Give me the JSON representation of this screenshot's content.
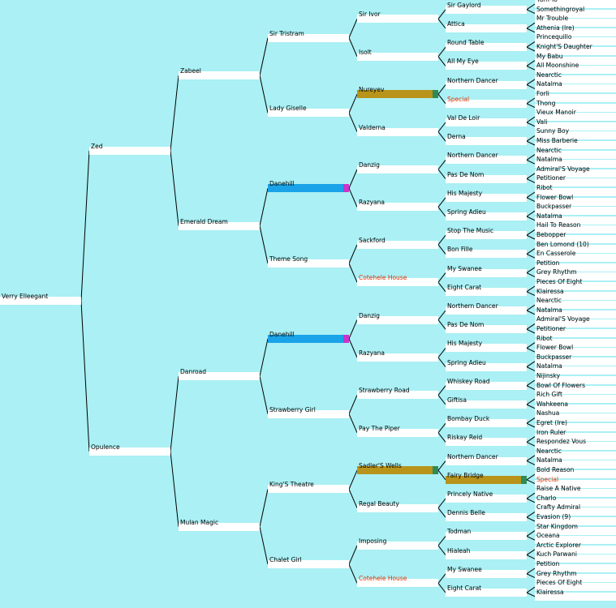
{
  "subject": "Verry Elleegant",
  "colors": {
    "background": "#aaf0f4",
    "box": "#ffffff",
    "line": "#000000",
    "highlight_text": "#e03000",
    "inbreed_blue": "#1aa3e8",
    "inbreed_blue_end": "#cc33cc",
    "inbreed_gold": "#b8941a",
    "inbreed_gold_end": "#2e8b57"
  },
  "tree": {
    "name": "Verry Elleegant",
    "children": [
      {
        "name": "Zed",
        "children": [
          {
            "name": "Zabeel",
            "children": [
              {
                "name": "Sir Tristram",
                "children": [
                  {
                    "name": "Sir Ivor",
                    "children": [
                      {
                        "name": "Sir Gaylord",
                        "children": [
                          {
                            "name": "Turn-To"
                          },
                          {
                            "name": "Somethingroyal"
                          }
                        ]
                      },
                      {
                        "name": "Attica",
                        "children": [
                          {
                            "name": "Mr Trouble"
                          },
                          {
                            "name": "Athenia (Ire)"
                          }
                        ]
                      }
                    ]
                  },
                  {
                    "name": "Isolt",
                    "children": [
                      {
                        "name": "Round Table",
                        "children": [
                          {
                            "name": "Princequillo"
                          },
                          {
                            "name": "Knight'S Daughter"
                          }
                        ]
                      },
                      {
                        "name": "All My Eye",
                        "children": [
                          {
                            "name": "My Babu"
                          },
                          {
                            "name": "All Moonshine"
                          }
                        ]
                      }
                    ]
                  }
                ]
              },
              {
                "name": "Lady Giselle",
                "children": [
                  {
                    "name": "Nureyev",
                    "mark": "gold",
                    "children": [
                      {
                        "name": "Northern Dancer",
                        "children": [
                          {
                            "name": "Nearctic"
                          },
                          {
                            "name": "Natalma"
                          }
                        ]
                      },
                      {
                        "name": "Special",
                        "hl": true,
                        "children": [
                          {
                            "name": "Forli"
                          },
                          {
                            "name": "Thong"
                          }
                        ]
                      }
                    ]
                  },
                  {
                    "name": "Valderna",
                    "children": [
                      {
                        "name": "Val De Loir",
                        "children": [
                          {
                            "name": "Vieux Manoir"
                          },
                          {
                            "name": "Vali"
                          }
                        ]
                      },
                      {
                        "name": "Derna",
                        "children": [
                          {
                            "name": "Sunny Boy"
                          },
                          {
                            "name": "Miss Barberie"
                          }
                        ]
                      }
                    ]
                  }
                ]
              }
            ]
          },
          {
            "name": "Emerald Dream",
            "children": [
              {
                "name": "Danehill",
                "mark": "blue",
                "children": [
                  {
                    "name": "Danzig",
                    "children": [
                      {
                        "name": "Northern Dancer",
                        "children": [
                          {
                            "name": "Nearctic"
                          },
                          {
                            "name": "Natalma"
                          }
                        ]
                      },
                      {
                        "name": "Pas De Nom",
                        "children": [
                          {
                            "name": "Admiral'S Voyage"
                          },
                          {
                            "name": "Petitioner"
                          }
                        ]
                      }
                    ]
                  },
                  {
                    "name": "Razyana",
                    "children": [
                      {
                        "name": "His Majesty",
                        "children": [
                          {
                            "name": "Ribot"
                          },
                          {
                            "name": "Flower Bowl"
                          }
                        ]
                      },
                      {
                        "name": "Spring Adieu",
                        "children": [
                          {
                            "name": "Buckpasser"
                          },
                          {
                            "name": "Natalma"
                          }
                        ]
                      }
                    ]
                  }
                ]
              },
              {
                "name": "Theme Song",
                "children": [
                  {
                    "name": "Sackford",
                    "children": [
                      {
                        "name": "Stop The Music",
                        "children": [
                          {
                            "name": "Hail To Reason"
                          },
                          {
                            "name": "Bebopper"
                          }
                        ]
                      },
                      {
                        "name": "Bon Fille",
                        "children": [
                          {
                            "name": "Ben Lomond (10)"
                          },
                          {
                            "name": "En Casserole"
                          }
                        ]
                      }
                    ]
                  },
                  {
                    "name": "Cotehele House",
                    "hl": true,
                    "children": [
                      {
                        "name": "My Swanee",
                        "children": [
                          {
                            "name": "Petition"
                          },
                          {
                            "name": "Grey Rhythm"
                          }
                        ]
                      },
                      {
                        "name": "Eight Carat",
                        "children": [
                          {
                            "name": "Pieces Of Eight"
                          },
                          {
                            "name": "Klairessa"
                          }
                        ]
                      }
                    ]
                  }
                ]
              }
            ]
          }
        ]
      },
      {
        "name": "Opulence",
        "children": [
          {
            "name": "Danroad",
            "children": [
              {
                "name": "Danehill",
                "mark": "blue",
                "children": [
                  {
                    "name": "Danzig",
                    "children": [
                      {
                        "name": "Northern Dancer",
                        "children": [
                          {
                            "name": "Nearctic"
                          },
                          {
                            "name": "Natalma"
                          }
                        ]
                      },
                      {
                        "name": "Pas De Nom",
                        "children": [
                          {
                            "name": "Admiral'S Voyage"
                          },
                          {
                            "name": "Petitioner"
                          }
                        ]
                      }
                    ]
                  },
                  {
                    "name": "Razyana",
                    "children": [
                      {
                        "name": "His Majesty",
                        "children": [
                          {
                            "name": "Ribot"
                          },
                          {
                            "name": "Flower Bowl"
                          }
                        ]
                      },
                      {
                        "name": "Spring Adieu",
                        "children": [
                          {
                            "name": "Buckpasser"
                          },
                          {
                            "name": "Natalma"
                          }
                        ]
                      }
                    ]
                  }
                ]
              },
              {
                "name": "Strawberry Girl",
                "children": [
                  {
                    "name": "Strawberry Road",
                    "children": [
                      {
                        "name": "Whiskey Road",
                        "children": [
                          {
                            "name": "Nijinsky"
                          },
                          {
                            "name": "Bowl Of Flowers"
                          }
                        ]
                      },
                      {
                        "name": "Giftisa",
                        "children": [
                          {
                            "name": "Rich Gift"
                          },
                          {
                            "name": "Wahkeena"
                          }
                        ]
                      }
                    ]
                  },
                  {
                    "name": "Pay The Piper",
                    "children": [
                      {
                        "name": "Bombay Duck",
                        "children": [
                          {
                            "name": "Nashua"
                          },
                          {
                            "name": "Egret (Ire)"
                          }
                        ]
                      },
                      {
                        "name": "Riskay Reid",
                        "children": [
                          {
                            "name": "Iron Ruler"
                          },
                          {
                            "name": "Respondez Vous"
                          }
                        ]
                      }
                    ]
                  }
                ]
              }
            ]
          },
          {
            "name": "Mulan Magic",
            "children": [
              {
                "name": "King'S Theatre",
                "children": [
                  {
                    "name": "Sadler'S Wells",
                    "mark": "gold",
                    "children": [
                      {
                        "name": "Northern Dancer",
                        "children": [
                          {
                            "name": "Nearctic"
                          },
                          {
                            "name": "Natalma"
                          }
                        ]
                      },
                      {
                        "name": "Fairy Bridge",
                        "mark": "gold",
                        "children": [
                          {
                            "name": "Bold Reason"
                          },
                          {
                            "name": "Special",
                            "hl": true
                          }
                        ]
                      }
                    ]
                  },
                  {
                    "name": "Regal Beauty",
                    "children": [
                      {
                        "name": "Princely Native",
                        "children": [
                          {
                            "name": "Raise A Native"
                          },
                          {
                            "name": "Charlo"
                          }
                        ]
                      },
                      {
                        "name": "Dennis Belle",
                        "children": [
                          {
                            "name": "Crafty Admiral"
                          },
                          {
                            "name": "Evasion (9)"
                          }
                        ]
                      }
                    ]
                  }
                ]
              },
              {
                "name": "Chalet Girl",
                "children": [
                  {
                    "name": "Imposing",
                    "children": [
                      {
                        "name": "Todman",
                        "children": [
                          {
                            "name": "Star Kingdom"
                          },
                          {
                            "name": "Oceana"
                          }
                        ]
                      },
                      {
                        "name": "Hialeah",
                        "children": [
                          {
                            "name": "Arctic Explorer"
                          },
                          {
                            "name": "Kuch Parwani"
                          }
                        ]
                      }
                    ]
                  },
                  {
                    "name": "Cotehele House",
                    "hl": true,
                    "children": [
                      {
                        "name": "My Swanee",
                        "children": [
                          {
                            "name": "Petition"
                          },
                          {
                            "name": "Grey Rhythm"
                          }
                        ]
                      },
                      {
                        "name": "Eight Carat",
                        "children": [
                          {
                            "name": "Pieces Of Eight"
                          },
                          {
                            "name": "Klairessa"
                          }
                        ]
                      }
                    ]
                  }
                ]
              }
            ]
          }
        ]
      }
    ]
  }
}
